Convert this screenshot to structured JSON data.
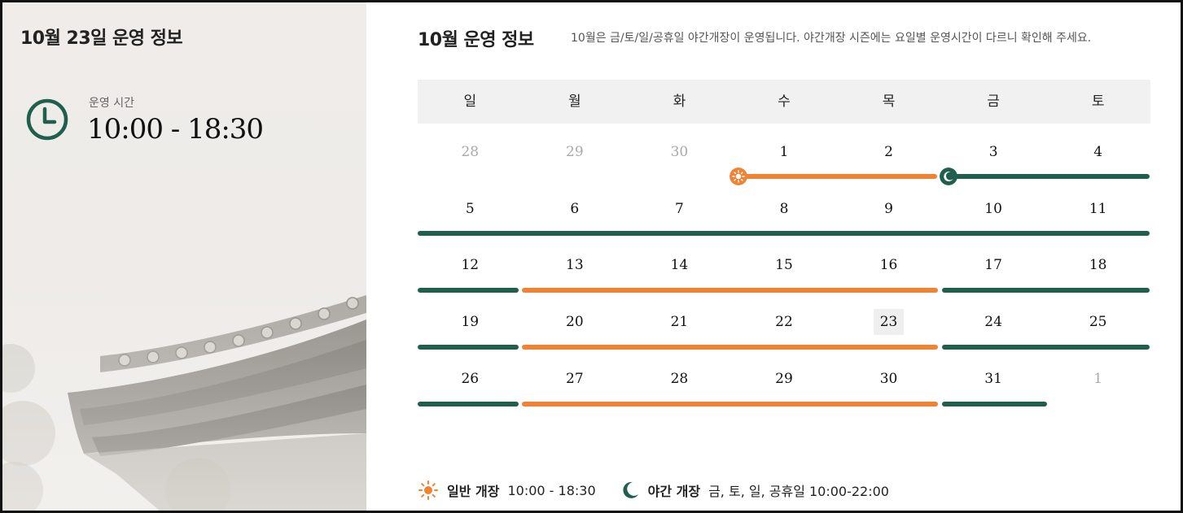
{
  "left": {
    "title": "10월 23일 운영 정보",
    "hours_label": "운영 시간",
    "hours_value": "10:00 - 18:30",
    "accent_color": "#205e4e"
  },
  "right": {
    "title": "10월 운영 정보",
    "notice": "10월은 금/토/일/공휴일 야간개장이 운영됩니다. 야간개장 시즌에는 요일별 운영시간이 다르니 확인해 주세요."
  },
  "calendar": {
    "weekdays": [
      "일",
      "월",
      "화",
      "수",
      "목",
      "금",
      "토"
    ],
    "weeks": [
      [
        "28",
        "29",
        "30",
        "1",
        "2",
        "3",
        "4"
      ],
      [
        "5",
        "6",
        "7",
        "8",
        "9",
        "10",
        "11"
      ],
      [
        "12",
        "13",
        "14",
        "15",
        "16",
        "17",
        "18"
      ],
      [
        "19",
        "20",
        "21",
        "22",
        "23",
        "24",
        "25"
      ],
      [
        "26",
        "27",
        "28",
        "29",
        "30",
        "31",
        "1"
      ]
    ],
    "muted": [
      [
        0,
        0
      ],
      [
        0,
        1
      ],
      [
        0,
        2
      ],
      [
        4,
        6
      ]
    ],
    "today": [
      3,
      4
    ],
    "day_color": "#ef8333",
    "night_color": "#205e4e"
  },
  "legend": {
    "day_icon": "sun-icon",
    "day_label": "일반 개장",
    "day_value": "10:00 - 18:30",
    "night_icon": "moon-icon",
    "night_label": "야간 개장",
    "night_value": "금, 토, 일, 공휴일 10:00-22:00"
  }
}
